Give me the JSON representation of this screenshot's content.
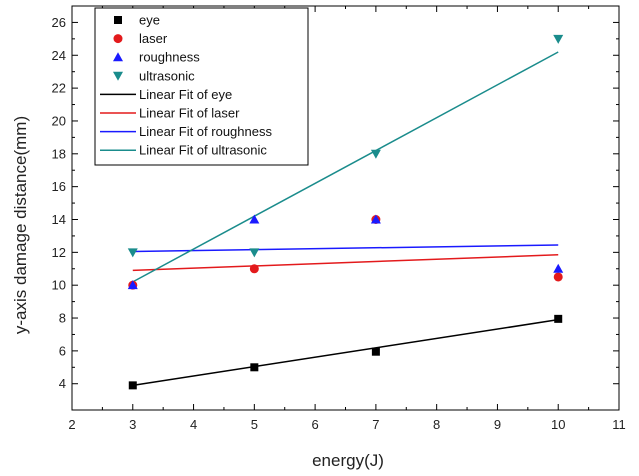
{
  "chart_data": {
    "type": "scatter",
    "xlabel": "energy(J)",
    "ylabel": "y-axis damage distance(mm)",
    "xlim": [
      2,
      11
    ],
    "ylim": [
      2.4,
      27
    ],
    "x_ticks": [
      "2",
      "3",
      "4",
      "5",
      "6",
      "7",
      "8",
      "9",
      "10",
      "11"
    ],
    "y_ticks": [
      "4",
      "6",
      "8",
      "10",
      "12",
      "14",
      "16",
      "18",
      "20",
      "22",
      "24",
      "26"
    ],
    "grid": false,
    "legend_position": "top-left",
    "x": [
      3,
      5,
      7,
      10
    ],
    "series": [
      {
        "name": "eye",
        "marker": "square",
        "color": "#000000",
        "values": [
          3.9,
          5.0,
          5.95,
          7.95
        ]
      },
      {
        "name": "laser",
        "marker": "circle",
        "color": "#e31a1c",
        "values": [
          10.0,
          11.0,
          14.0,
          10.5
        ]
      },
      {
        "name": "roughness",
        "marker": "triangle-up",
        "color": "#1a1aff",
        "values": [
          10.0,
          14.0,
          14.0,
          11.0
        ]
      },
      {
        "name": "ultrasonic",
        "marker": "triangle-down",
        "color": "#1a8c8c",
        "values": [
          12.0,
          12.0,
          18.0,
          25.0
        ]
      }
    ],
    "fits": [
      {
        "name": "Linear Fit of eye",
        "color": "#000000",
        "x": [
          3,
          10
        ],
        "values": [
          3.9,
          7.9
        ]
      },
      {
        "name": "Linear Fit of laser",
        "color": "#e31a1c",
        "x": [
          3,
          10
        ],
        "values": [
          10.9,
          11.85
        ]
      },
      {
        "name": "Linear Fit of roughness",
        "color": "#1a1aff",
        "x": [
          3,
          10
        ],
        "values": [
          12.05,
          12.45
        ]
      },
      {
        "name": "Linear Fit of ultrasonic",
        "color": "#1a8c8c",
        "x": [
          3,
          10
        ],
        "values": [
          10.2,
          24.2
        ]
      }
    ]
  }
}
